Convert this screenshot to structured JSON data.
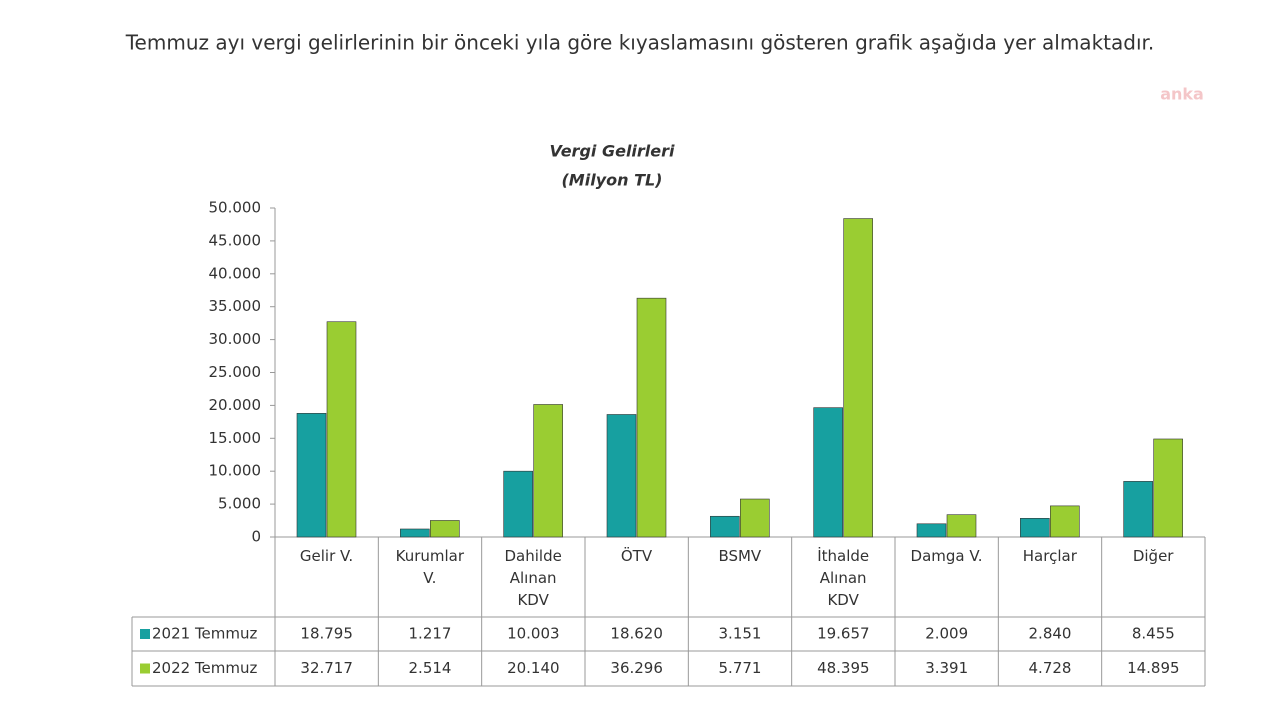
{
  "page": {
    "caption": "Temmuz ayı vergi gelirlerinin bir önceki yıla göre kıyaslamasını gösteren grafik aşağıda yer almaktadır.",
    "watermark": "anka"
  },
  "chart_data": {
    "type": "bar",
    "title": "Vergi Gelirleri",
    "subtitle": "(Milyon TL)",
    "categories": [
      "Gelir V.",
      "Kurumlar\nV.",
      "Dahilde\nAlınan\nKDV",
      "ÖTV",
      "BSMV",
      "İthalde\nAlınan\nKDV",
      "Damga V.",
      "Harçlar",
      "Diğer"
    ],
    "series": [
      {
        "name": "2021 Temmuz",
        "color": "#17a0a0",
        "values": [
          18795,
          1217,
          10003,
          18620,
          3151,
          19657,
          2009,
          2840,
          8455
        ],
        "value_labels": [
          "18.795",
          "1.217",
          "10.003",
          "18.620",
          "3.151",
          "19.657",
          "2.009",
          "2.840",
          "8.455"
        ]
      },
      {
        "name": "2022 Temmuz",
        "color": "#9acd32",
        "values": [
          32717,
          2514,
          20140,
          36296,
          5771,
          48395,
          3391,
          4728,
          14895
        ],
        "value_labels": [
          "32.717",
          "2.514",
          "20.140",
          "36.296",
          "5.771",
          "48.395",
          "3.391",
          "4.728",
          "14.895"
        ]
      }
    ],
    "ylim": [
      0,
      50000
    ],
    "yticks": [
      0,
      {
        "value": 5000,
        "label": "5.000"
      },
      {
        "value": 10000,
        "label": "10.000"
      },
      {
        "value": 15000,
        "label": "15.000"
      },
      {
        "value": 20000,
        "label": "20.000"
      },
      {
        "value": 25000,
        "label": "25.000"
      },
      {
        "value": 30000,
        "label": "30.000"
      },
      {
        "value": 35000,
        "label": "35.000"
      },
      {
        "value": 40000,
        "label": "40.000"
      },
      {
        "value": 45000,
        "label": "45.000"
      },
      {
        "value": 50000,
        "label": "50.000"
      }
    ],
    "grid": false
  }
}
